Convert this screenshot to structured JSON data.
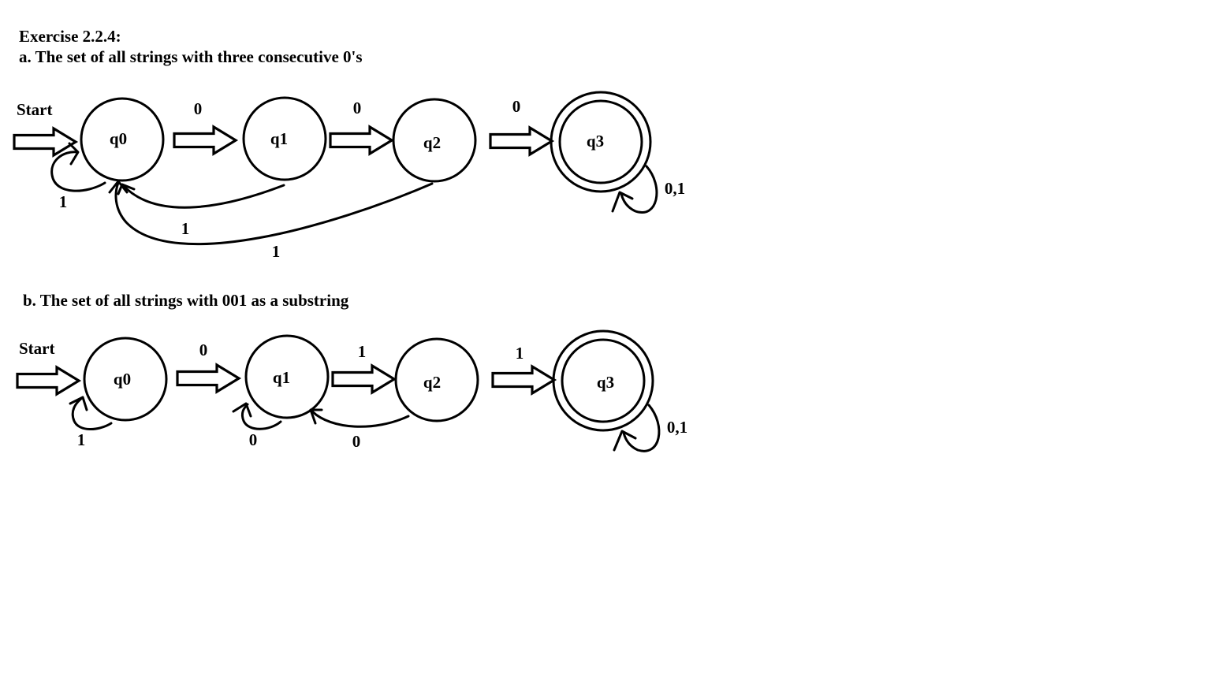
{
  "exercise_title": "Exercise 2.2.4:",
  "part_a": {
    "title": "a. The set of all strings with three consecutive 0's",
    "start_label": "Start",
    "states": [
      "q0",
      "q1",
      "q2",
      "q3"
    ],
    "accepting_state": "q3",
    "transitions": [
      {
        "from": "q0",
        "to": "q1",
        "label": "0"
      },
      {
        "from": "q1",
        "to": "q2",
        "label": "0"
      },
      {
        "from": "q2",
        "to": "q3",
        "label": "0"
      },
      {
        "from": "q0",
        "to": "q0",
        "label": "1"
      },
      {
        "from": "q1",
        "to": "q0",
        "label": "1"
      },
      {
        "from": "q2",
        "to": "q0",
        "label": "1"
      },
      {
        "from": "q3",
        "to": "q3",
        "label": "0,1"
      }
    ]
  },
  "part_b": {
    "title": "b. The set of all strings with 001 as a substring",
    "start_label": "Start",
    "states": [
      "q0",
      "q1",
      "q2",
      "q3"
    ],
    "accepting_state": "q3",
    "transitions": [
      {
        "from": "q0",
        "to": "q1",
        "label": "0"
      },
      {
        "from": "q1",
        "to": "q2",
        "label": "1"
      },
      {
        "from": "q2",
        "to": "q3",
        "label": "1"
      },
      {
        "from": "q0",
        "to": "q0",
        "label": "1"
      },
      {
        "from": "q1",
        "to": "q1",
        "label": "0"
      },
      {
        "from": "q2",
        "to": "q1",
        "label": "0"
      },
      {
        "from": "q3",
        "to": "q3",
        "label": "0,1"
      }
    ]
  }
}
